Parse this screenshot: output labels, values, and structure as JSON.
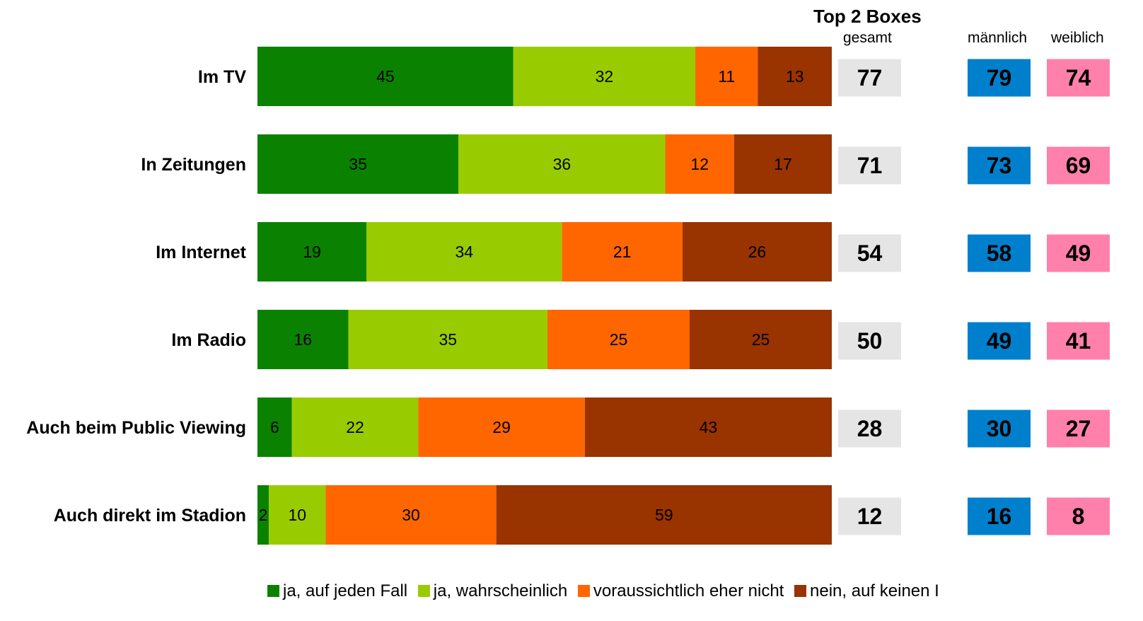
{
  "header": {
    "top2_title": "Top 2 Boxes",
    "col_total": "gesamt",
    "col_male": "männlich",
    "col_female": "weiblich"
  },
  "colors": {
    "ja_auf_jeden_fall": "#0a8200",
    "ja_wahrscheinlich": "#99cc00",
    "eher_nicht": "#ff6600",
    "auf_keinen_fall": "#993300",
    "total_box": "#e5e5e5",
    "male_box": "#0080cc",
    "female_box": "#ff80aa"
  },
  "legend": [
    {
      "label": "ja, auf jeden Fall",
      "color": "#0a8200"
    },
    {
      "label": "ja, wahrscheinlich",
      "color": "#99cc00"
    },
    {
      "label": "voraussichtlich eher nicht",
      "color": "#ff6600"
    },
    {
      "label": "nein, auf keinen I",
      "color": "#993300"
    }
  ],
  "chart_data": {
    "type": "bar",
    "orientation": "horizontal",
    "stacked": true,
    "title": "",
    "xlabel": "",
    "ylabel": "",
    "categories": [
      "Im TV",
      "In Zeitungen",
      "Im Internet",
      "Im Radio",
      "Auch beim Public Viewing",
      "Auch direkt im Stadion"
    ],
    "series": [
      {
        "name": "ja, auf jeden Fall",
        "color": "#0a8200",
        "values": [
          45,
          35,
          19,
          16,
          6,
          2
        ]
      },
      {
        "name": "ja, wahrscheinlich",
        "color": "#99cc00",
        "values": [
          32,
          36,
          34,
          35,
          22,
          10
        ]
      },
      {
        "name": "voraussichtlich eher nicht",
        "color": "#ff6600",
        "values": [
          11,
          12,
          21,
          25,
          29,
          30
        ]
      },
      {
        "name": "nein, auf keinen I",
        "color": "#993300",
        "values": [
          13,
          17,
          26,
          25,
          43,
          59
        ]
      }
    ],
    "top2_boxes": {
      "gesamt": [
        77,
        71,
        54,
        50,
        28,
        12
      ],
      "männlich": [
        79,
        73,
        58,
        49,
        30,
        16
      ],
      "weiblich": [
        74,
        69,
        49,
        41,
        27,
        8
      ]
    },
    "legend_position": "bottom",
    "grid": false
  }
}
